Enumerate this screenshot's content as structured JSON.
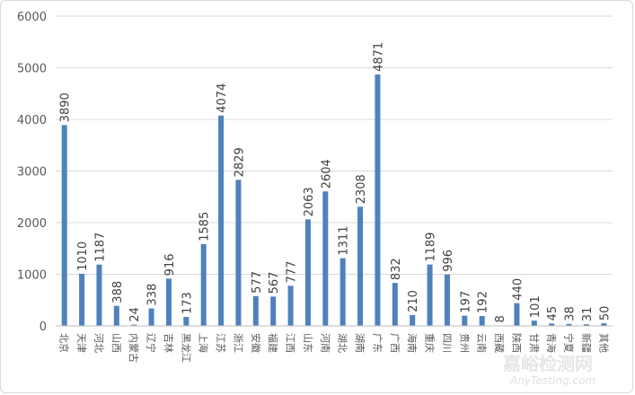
{
  "chart_data": {
    "type": "bar",
    "categories": [
      "北京",
      "天津",
      "河北",
      "山西",
      "内蒙古",
      "辽宁",
      "吉林",
      "黑龙江",
      "上海",
      "江苏",
      "浙江",
      "安徽",
      "福建",
      "江西",
      "山东",
      "河南",
      "湖北",
      "湖南",
      "广东",
      "广西",
      "海南",
      "重庆",
      "四川",
      "贵州",
      "云南",
      "西藏",
      "陕西",
      "甘肃",
      "青海",
      "宁夏",
      "新疆",
      "其他"
    ],
    "values": [
      3890,
      1010,
      1187,
      388,
      24,
      338,
      916,
      173,
      1585,
      4074,
      2829,
      577,
      567,
      777,
      2063,
      2604,
      1311,
      2308,
      4871,
      832,
      210,
      1189,
      996,
      197,
      192,
      8,
      440,
      101,
      45,
      38,
      31,
      50
    ],
    "yticks": [
      0,
      1000,
      2000,
      3000,
      4000,
      5000,
      6000
    ],
    "ylim": [
      0,
      6000
    ],
    "grid": true,
    "bar_color": "#4f81bd"
  },
  "watermark": {
    "brand": "嘉峪检测网",
    "site": "AnyTesting.com"
  }
}
